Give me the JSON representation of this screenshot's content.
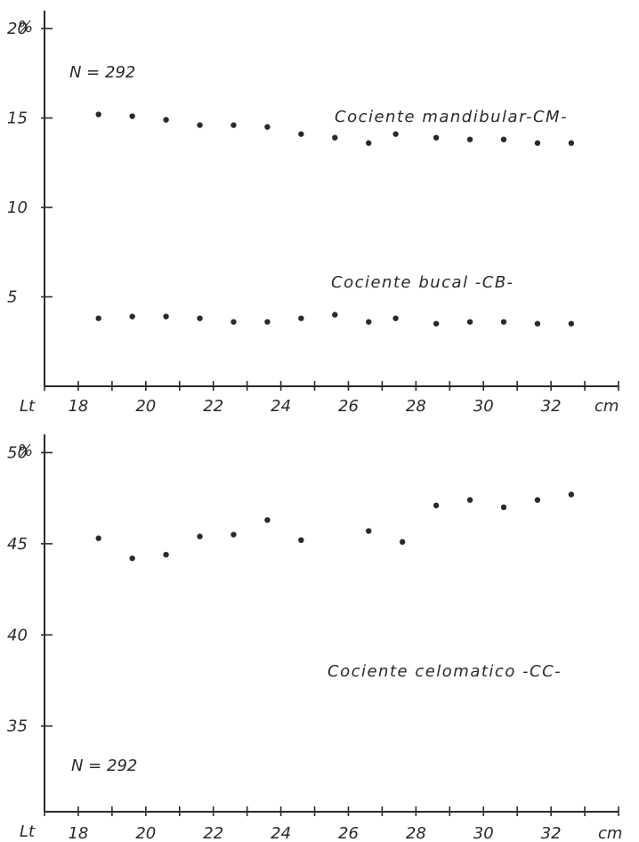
{
  "chart_data": [
    {
      "type": "scatter",
      "y_unit_label": "%",
      "x_axis_label": "Lt",
      "x_unit_label": "cm",
      "x_ticks": [
        18,
        20,
        22,
        24,
        26,
        28,
        30,
        32
      ],
      "y_ticks": [
        5,
        10,
        15,
        20
      ],
      "xlim": [
        17,
        34
      ],
      "ylim": [
        0,
        21
      ],
      "annotation": "N = 292",
      "series": [
        {
          "name": "Cociente mandibular-CM-",
          "points": [
            [
              18.6,
              15.2
            ],
            [
              19.6,
              15.1
            ],
            [
              20.6,
              14.9
            ],
            [
              21.6,
              14.6
            ],
            [
              22.6,
              14.6
            ],
            [
              23.6,
              14.5
            ],
            [
              24.6,
              14.1
            ],
            [
              25.6,
              13.9
            ],
            [
              26.6,
              13.6
            ],
            [
              27.4,
              14.1
            ],
            [
              28.6,
              13.9
            ],
            [
              29.6,
              13.8
            ],
            [
              30.6,
              13.8
            ],
            [
              31.6,
              13.6
            ],
            [
              32.6,
              13.6
            ]
          ]
        },
        {
          "name": "Cociente bucal -CB-",
          "points": [
            [
              18.6,
              3.8
            ],
            [
              19.6,
              3.9
            ],
            [
              20.6,
              3.9
            ],
            [
              21.6,
              3.8
            ],
            [
              22.6,
              3.6
            ],
            [
              23.6,
              3.6
            ],
            [
              24.6,
              3.8
            ],
            [
              25.6,
              4.0
            ],
            [
              26.6,
              3.6
            ],
            [
              27.4,
              3.8
            ],
            [
              28.6,
              3.5
            ],
            [
              29.6,
              3.6
            ],
            [
              30.6,
              3.6
            ],
            [
              31.6,
              3.5
            ],
            [
              32.6,
              3.5
            ]
          ]
        }
      ]
    },
    {
      "type": "scatter",
      "y_unit_label": "%",
      "x_axis_label": "Lt",
      "x_unit_label": "cm",
      "x_ticks": [
        18,
        20,
        22,
        24,
        26,
        28,
        30,
        32
      ],
      "y_ticks": [
        35,
        40,
        45,
        50
      ],
      "xlim": [
        17,
        34
      ],
      "ylim": [
        30.3,
        51
      ],
      "annotation": "N = 292",
      "series": [
        {
          "name": "Cociente celomatico -CC-",
          "points": [
            [
              18.6,
              45.3
            ],
            [
              19.6,
              44.2
            ],
            [
              20.6,
              44.4
            ],
            [
              21.6,
              45.4
            ],
            [
              22.6,
              45.5
            ],
            [
              23.6,
              46.3
            ],
            [
              24.6,
              45.2
            ],
            [
              26.6,
              45.7
            ],
            [
              27.6,
              45.1
            ],
            [
              28.6,
              47.1
            ],
            [
              29.6,
              47.4
            ],
            [
              30.6,
              47.0
            ],
            [
              31.6,
              47.4
            ],
            [
              32.6,
              47.7
            ]
          ]
        }
      ]
    }
  ]
}
